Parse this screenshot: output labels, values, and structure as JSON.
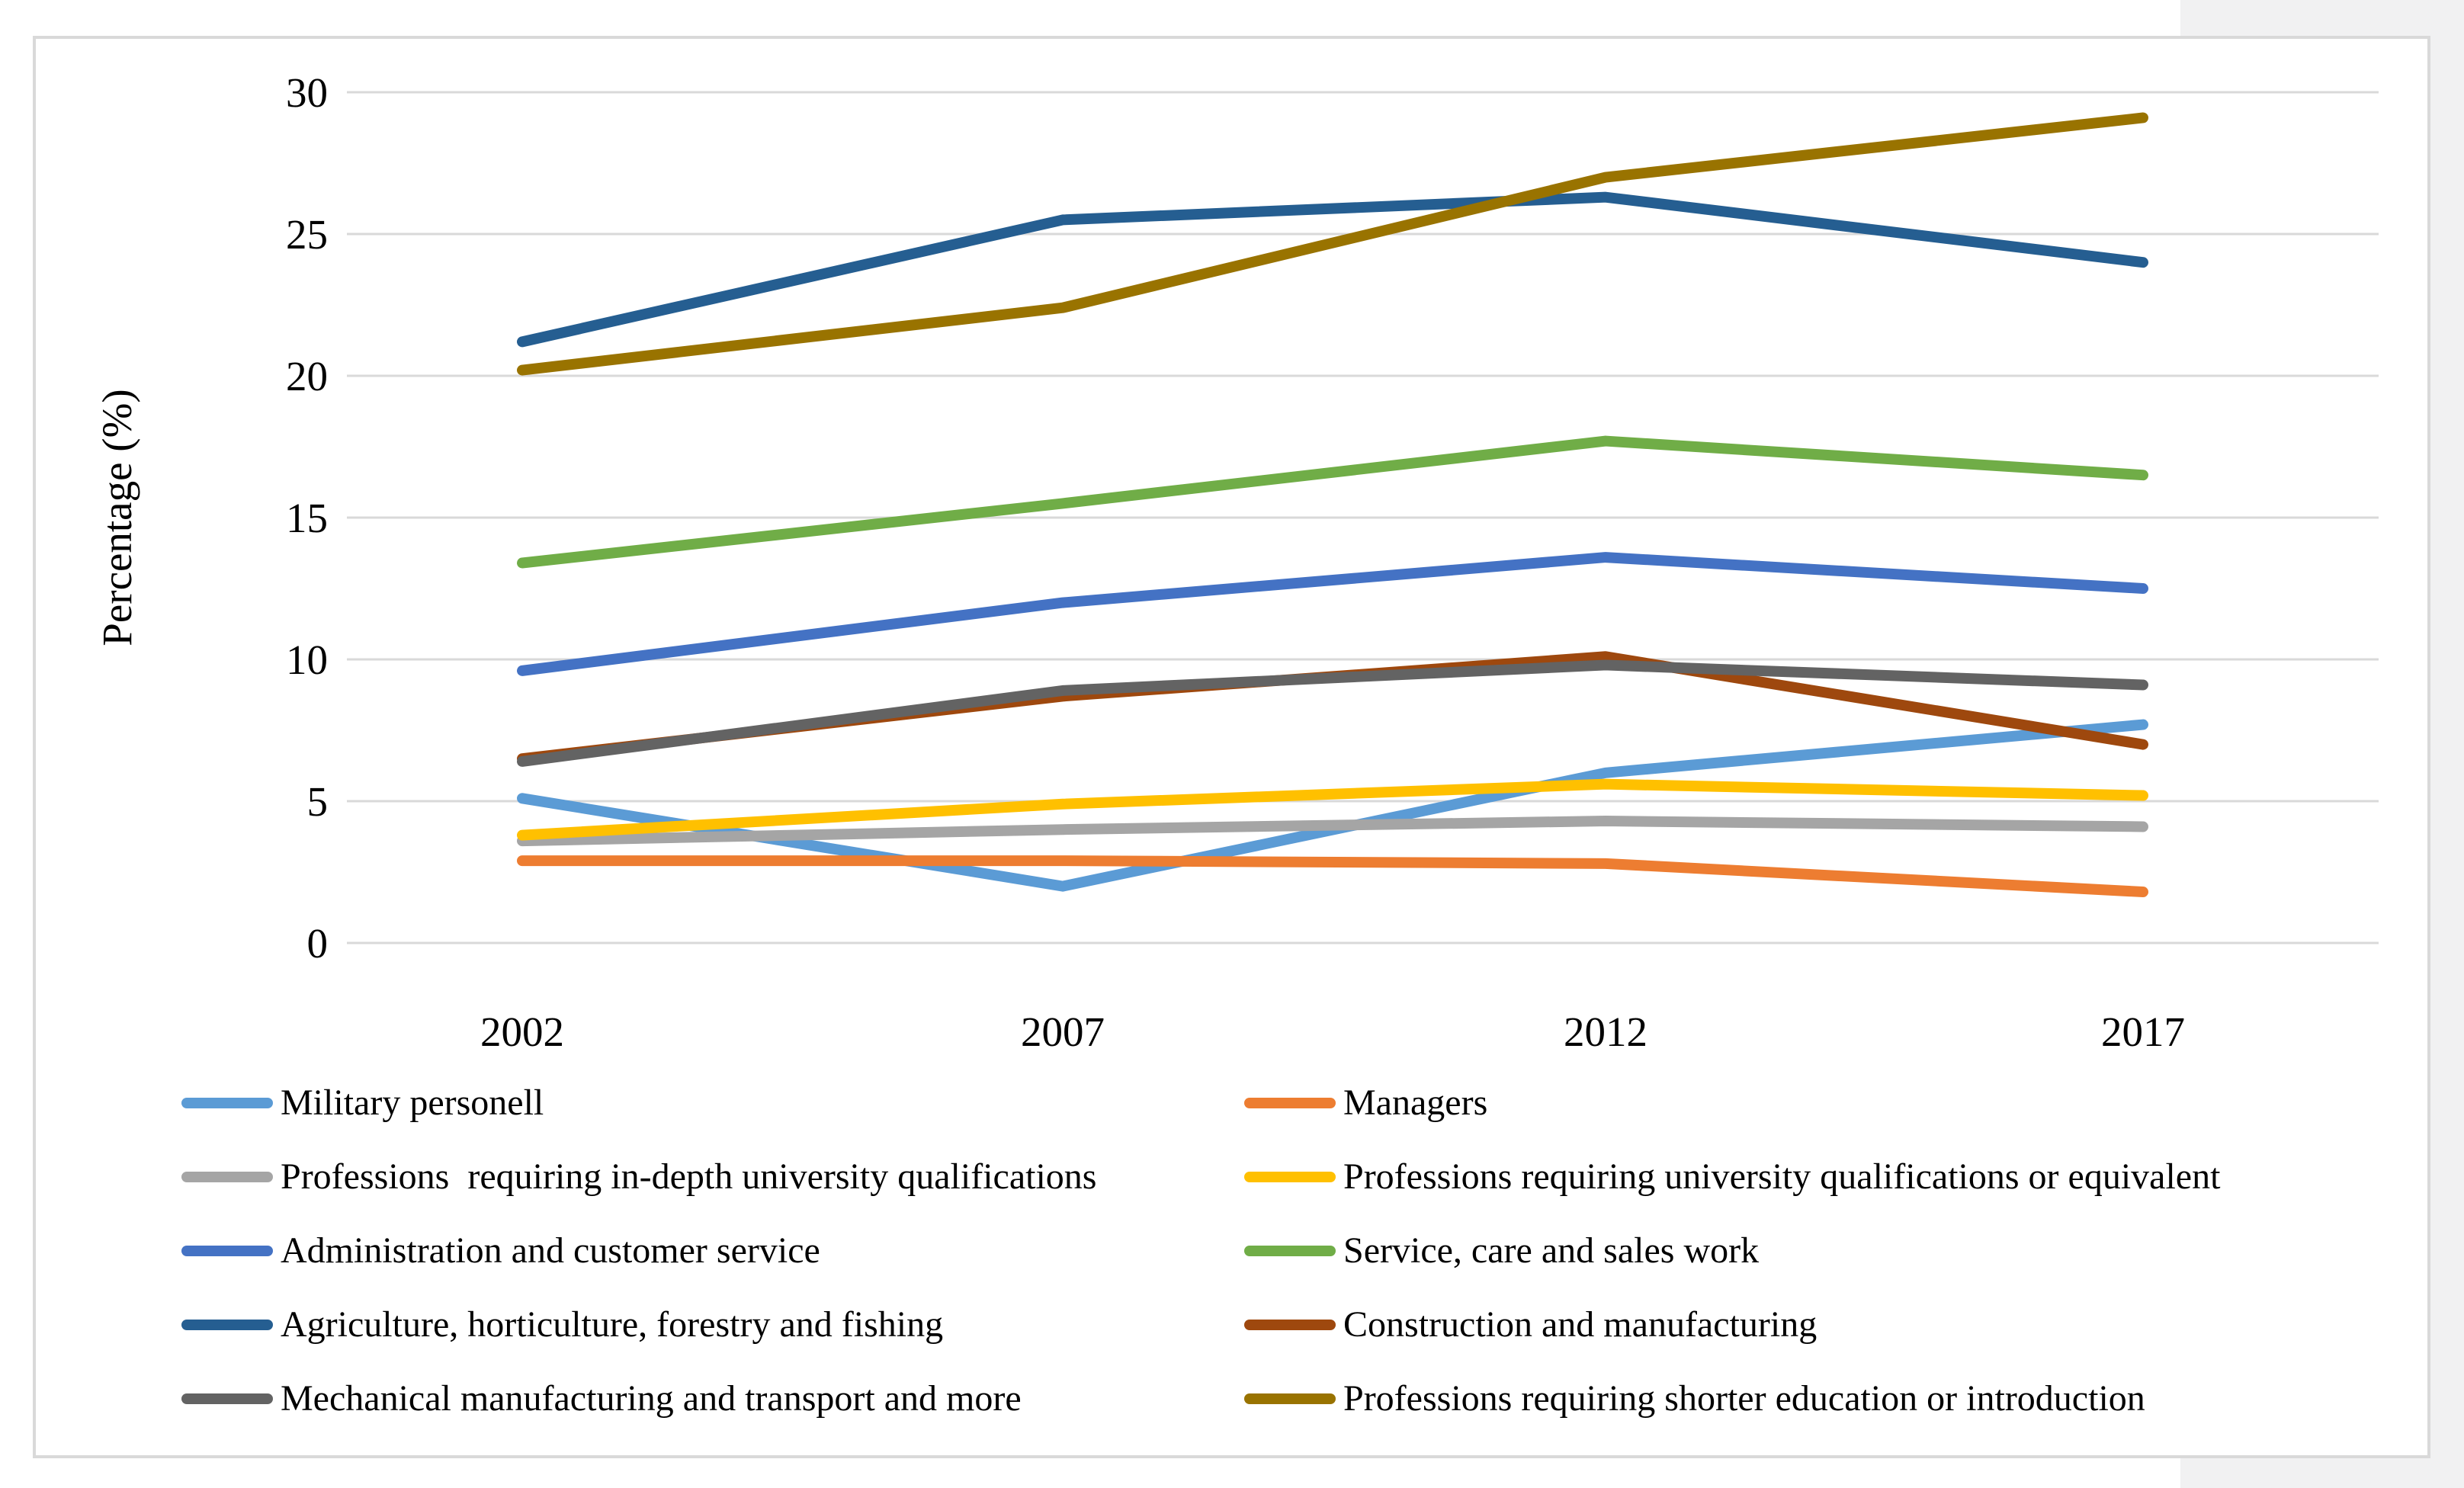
{
  "page": {
    "background_color": "#FFFFFF",
    "gutter_color": "#F1F1F2",
    "chart_border_color": "#D9D9D9"
  },
  "chart_data": {
    "type": "line",
    "title": "",
    "xlabel": "",
    "ylabel": "Percentage (%)",
    "ylim": [
      0,
      30
    ],
    "ytick_step": 5,
    "yticks": [
      "0",
      "5",
      "10",
      "15",
      "20",
      "25",
      "30"
    ],
    "categories": [
      "2002",
      "2007",
      "2012",
      "2017"
    ],
    "grid": true,
    "gridline_color": "#D9D9D9",
    "line_width": 14,
    "legend_position": "bottom-two-columns",
    "series": [
      {
        "name": "Military personell",
        "color": "#5B9BD5",
        "values": [
          5.1,
          2.0,
          6.0,
          7.7
        ]
      },
      {
        "name": "Managers",
        "color": "#ED7D31",
        "values": [
          2.9,
          2.9,
          2.8,
          1.8
        ]
      },
      {
        "name": "Professions  requiring in-depth university qualifications",
        "color": "#A5A5A5",
        "values": [
          3.6,
          4.0,
          4.3,
          4.1
        ]
      },
      {
        "name": "Professions requiring university qualifications or equivalent",
        "color": "#FFC000",
        "values": [
          3.8,
          4.9,
          5.6,
          5.2
        ]
      },
      {
        "name": "Administration and customer service",
        "color": "#4472C4",
        "values": [
          9.6,
          12.0,
          13.6,
          12.5
        ]
      },
      {
        "name": "Service, care and sales work",
        "color": "#70AD47",
        "values": [
          13.4,
          15.5,
          17.7,
          16.5
        ]
      },
      {
        "name": "Agriculture, horticulture, forestry and fishing",
        "color": "#255E91",
        "values": [
          21.2,
          25.5,
          26.3,
          24.0
        ]
      },
      {
        "name": "Construction and manufacturing",
        "color": "#9E480E",
        "values": [
          6.5,
          8.7,
          10.1,
          7.0
        ]
      },
      {
        "name": "Mechanical manufacturing and transport and more",
        "color": "#636363",
        "values": [
          6.4,
          8.9,
          9.8,
          9.1
        ]
      },
      {
        "name": "Professions requiring shorter education or introduction",
        "color": "#997300",
        "values": [
          20.2,
          22.4,
          27.0,
          29.1
        ]
      }
    ],
    "legend_columns": {
      "left": [
        0,
        2,
        4,
        6,
        8
      ],
      "right": [
        1,
        3,
        5,
        7,
        9
      ]
    }
  }
}
